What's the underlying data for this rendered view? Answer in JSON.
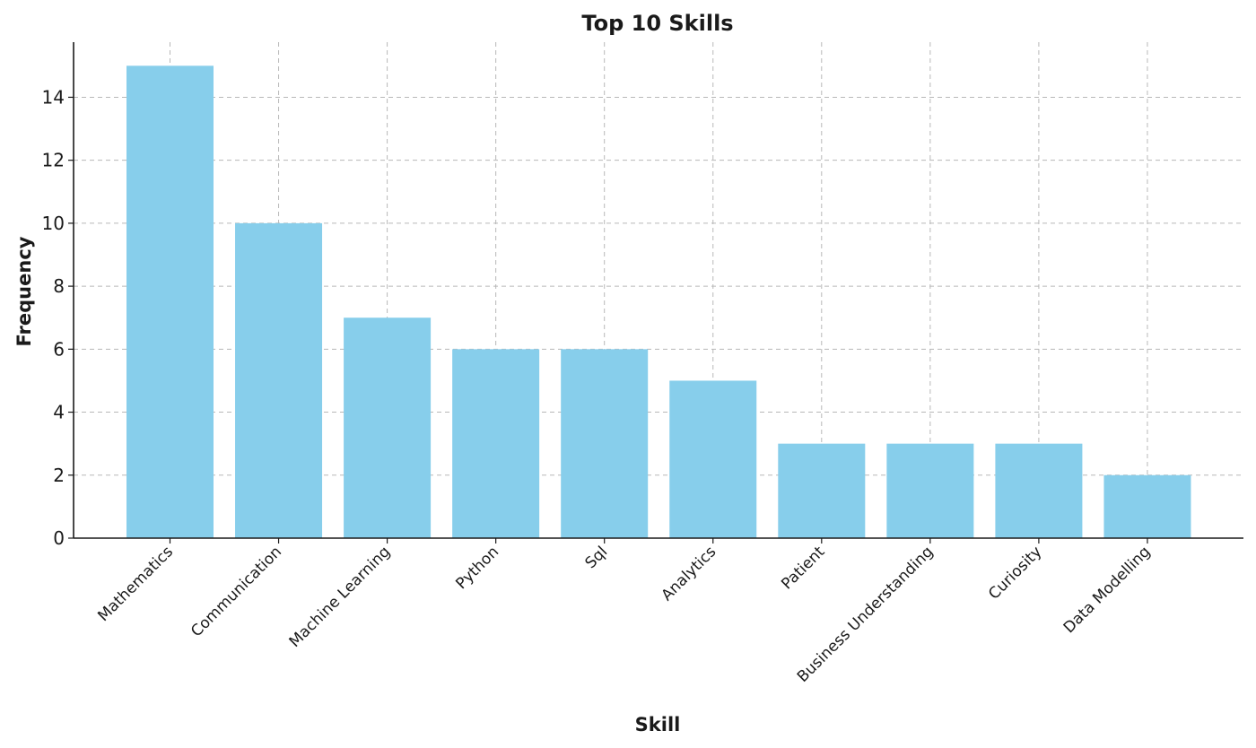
{
  "chart_data": {
    "type": "bar",
    "title": "Top 10 Skills",
    "xlabel": "Skill",
    "ylabel": "Frequency",
    "categories": [
      "Mathematics",
      "Communication",
      "Machine Learning",
      "Python",
      "Sql",
      "Analytics",
      "Patient",
      "Business Understanding",
      "Curiosity",
      "Data Modelling"
    ],
    "values": [
      15,
      10,
      7,
      6,
      6,
      5,
      3,
      3,
      3,
      2
    ],
    "ylim": [
      0,
      15.75
    ],
    "yticks": [
      0,
      2,
      4,
      6,
      8,
      10,
      12,
      14
    ],
    "grid": true,
    "bar_color": "#87ceeb"
  }
}
